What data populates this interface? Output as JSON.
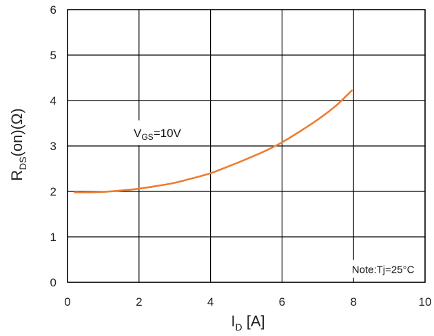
{
  "chart_data": {
    "type": "line",
    "xlim": [
      0,
      10
    ],
    "ylim": [
      0,
      6
    ],
    "x_ticks": [
      0,
      2,
      4,
      6,
      8,
      10
    ],
    "y_ticks": [
      0,
      1,
      2,
      3,
      4,
      5,
      6
    ],
    "xlabel": {
      "main": "I",
      "sub": "D",
      "unit": " [A]"
    },
    "ylabel": {
      "main": "R",
      "sub": "DS",
      "unit": "(on)(Ω)"
    },
    "grid": true,
    "series": [
      {
        "color": "#ED7D31",
        "x": [
          0.2,
          0.5,
          1.0,
          1.5,
          2.0,
          2.5,
          3.0,
          3.5,
          4.0,
          4.5,
          5.0,
          5.5,
          6.0,
          6.5,
          7.0,
          7.5,
          7.95
        ],
        "y": [
          1.98,
          1.98,
          1.99,
          2.02,
          2.06,
          2.12,
          2.19,
          2.29,
          2.4,
          2.55,
          2.71,
          2.88,
          3.08,
          3.32,
          3.58,
          3.88,
          4.22
        ]
      }
    ],
    "annotations": {
      "vgs": {
        "main": "V",
        "sub": "GS",
        "rest": "=10V",
        "x": 1.85,
        "y": 3.2
      },
      "note": {
        "text": "Note:Tj=25°C",
        "x": 9.7,
        "y": 0.28
      }
    }
  }
}
